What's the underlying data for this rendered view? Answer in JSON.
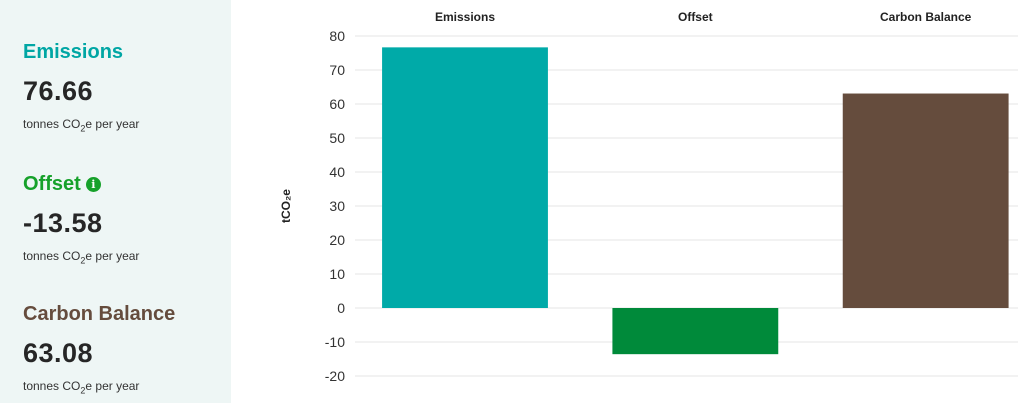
{
  "summary": {
    "items": [
      {
        "key": "emissions",
        "title": "Emissions",
        "value": "76.66",
        "unit_pre": "tonnes CO",
        "unit_sub": "2",
        "unit_post": "e per year",
        "color": "#00a6a4",
        "has_info": false
      },
      {
        "key": "offset",
        "title": "Offset",
        "value": "-13.58",
        "unit_pre": "tonnes CO",
        "unit_sub": "2",
        "unit_post": "e per year",
        "color": "#16a12a",
        "has_info": true,
        "info_glyph": "i",
        "info_icon": "info-icon"
      },
      {
        "key": "balance",
        "title": "Carbon Balance",
        "value": "63.08",
        "unit_pre": "tonnes CO",
        "unit_sub": "2",
        "unit_post": "e per year",
        "color": "#654c3d",
        "has_info": false
      }
    ]
  },
  "chart_data": {
    "type": "bar",
    "categories": [
      "Emissions",
      "Offset",
      "Carbon Balance"
    ],
    "values": [
      76.66,
      -13.58,
      63.08
    ],
    "colors": [
      "#00aaa8",
      "#008a3a",
      "#654c3d"
    ],
    "title": "",
    "xlabel": "",
    "ylabel": "tCO₂e",
    "ylim": [
      -20,
      80
    ],
    "yticks": [
      80,
      70,
      60,
      50,
      40,
      30,
      20,
      10,
      0,
      -10,
      -20
    ],
    "grid": true,
    "legend": "none",
    "category_labels_position": "top"
  }
}
